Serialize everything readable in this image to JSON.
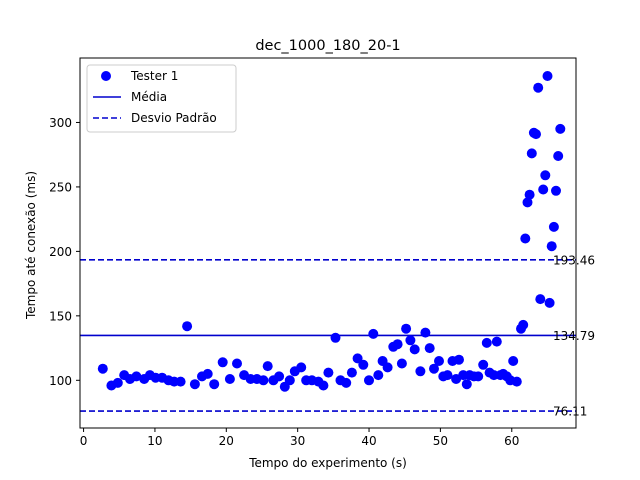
{
  "chart_data": {
    "type": "scatter",
    "title": "dec_1000_180_20-1",
    "xlabel": "Tempo do experimento (s)",
    "ylabel": "Tempo até conexão (ms)",
    "xlim": [
      -0.5,
      69
    ],
    "ylim": [
      63,
      350
    ],
    "xticks": [
      0,
      10,
      20,
      30,
      40,
      50,
      60
    ],
    "yticks": [
      100,
      150,
      200,
      250,
      300
    ],
    "grid": false,
    "legend_position": "top-left",
    "series": [
      {
        "name": "Tester 1",
        "color": "#0000ff",
        "points": [
          [
            2.7,
            109
          ],
          [
            3.9,
            96
          ],
          [
            4.8,
            98
          ],
          [
            5.7,
            104
          ],
          [
            6.5,
            101
          ],
          [
            7.4,
            103
          ],
          [
            8.5,
            101
          ],
          [
            9.3,
            104
          ],
          [
            10.1,
            102
          ],
          [
            11.0,
            102
          ],
          [
            11.9,
            100
          ],
          [
            12.7,
            99
          ],
          [
            13.6,
            99
          ],
          [
            14.5,
            142
          ],
          [
            15.6,
            97
          ],
          [
            16.6,
            103
          ],
          [
            17.4,
            105
          ],
          [
            18.3,
            97
          ],
          [
            19.5,
            114
          ],
          [
            20.5,
            101
          ],
          [
            21.5,
            113
          ],
          [
            22.5,
            104
          ],
          [
            23.4,
            101
          ],
          [
            24.3,
            101
          ],
          [
            25.2,
            100
          ],
          [
            25.8,
            111
          ],
          [
            26.6,
            100
          ],
          [
            27.4,
            103
          ],
          [
            28.2,
            95
          ],
          [
            28.9,
            100
          ],
          [
            29.6,
            107
          ],
          [
            30.5,
            110
          ],
          [
            31.2,
            100
          ],
          [
            32.0,
            100
          ],
          [
            32.9,
            99
          ],
          [
            33.6,
            96
          ],
          [
            34.3,
            106
          ],
          [
            35.3,
            133
          ],
          [
            36.0,
            100
          ],
          [
            36.8,
            98
          ],
          [
            37.6,
            106
          ],
          [
            38.4,
            117
          ],
          [
            39.2,
            112
          ],
          [
            40.0,
            100
          ],
          [
            40.6,
            136
          ],
          [
            41.3,
            104
          ],
          [
            41.9,
            115
          ],
          [
            42.6,
            110
          ],
          [
            43.4,
            126
          ],
          [
            44.0,
            128
          ],
          [
            44.6,
            113
          ],
          [
            45.2,
            140
          ],
          [
            45.8,
            131
          ],
          [
            46.4,
            124
          ],
          [
            47.2,
            107
          ],
          [
            47.9,
            137
          ],
          [
            48.5,
            125
          ],
          [
            49.1,
            109
          ],
          [
            49.8,
            115
          ],
          [
            50.4,
            103
          ],
          [
            51.0,
            104
          ],
          [
            51.7,
            115
          ],
          [
            52.2,
            101
          ],
          [
            52.6,
            116
          ],
          [
            53.2,
            104
          ],
          [
            53.7,
            97
          ],
          [
            54.1,
            104
          ],
          [
            54.7,
            103
          ],
          [
            55.3,
            103
          ],
          [
            56.0,
            112
          ],
          [
            56.5,
            129
          ],
          [
            56.9,
            106
          ],
          [
            57.5,
            104
          ],
          [
            57.9,
            130
          ],
          [
            58.4,
            104
          ],
          [
            58.8,
            105
          ],
          [
            59.3,
            103
          ],
          [
            59.8,
            100
          ],
          [
            60.2,
            115
          ],
          [
            60.7,
            99
          ],
          [
            61.3,
            140
          ],
          [
            61.6,
            143
          ],
          [
            61.9,
            210
          ],
          [
            62.2,
            238
          ],
          [
            62.5,
            244
          ],
          [
            62.8,
            276
          ],
          [
            63.1,
            292
          ],
          [
            63.4,
            291
          ],
          [
            63.7,
            327
          ],
          [
            64.0,
            163
          ],
          [
            64.4,
            248
          ],
          [
            64.7,
            259
          ],
          [
            65.0,
            336
          ],
          [
            65.3,
            160
          ],
          [
            65.6,
            204
          ],
          [
            65.9,
            219
          ],
          [
            66.2,
            247
          ],
          [
            66.5,
            274
          ],
          [
            66.8,
            295
          ]
        ]
      }
    ],
    "reference_lines": [
      {
        "name": "Média",
        "value": 134.79,
        "label": "134.79",
        "style": "solid",
        "color": "#0000cd"
      },
      {
        "name": "Desvio Padrão",
        "value": 193.46,
        "label": "193.46",
        "style": "dashed",
        "color": "#0000cd"
      },
      {
        "name": "Desvio Padrão",
        "value": 76.11,
        "label": "76.11",
        "style": "dashed",
        "color": "#0000cd"
      }
    ],
    "legend": [
      {
        "label": "Tester 1",
        "kind": "marker"
      },
      {
        "label": "Média",
        "kind": "solid-line"
      },
      {
        "label": "Desvio Padrão",
        "kind": "dashed-line"
      }
    ]
  }
}
